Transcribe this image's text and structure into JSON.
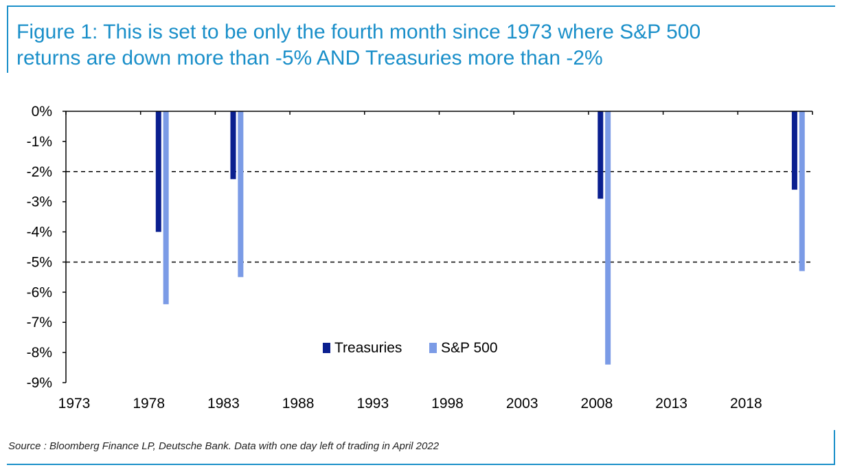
{
  "theme": {
    "accent": "#1a8fc9",
    "treasuries_color": "#0a1f8f",
    "sp500_color": "#7b9be6"
  },
  "figure": {
    "title_line1": "Figure 1: This is set to be only the fourth month since 1973 where S&P 500",
    "title_line2": "returns are down more than -5% AND Treasuries more than -2%",
    "source": "Source : Bloomberg Finance LP, Deutsche Bank. Data with one day left of trading in April 2022"
  },
  "chart_data": {
    "type": "bar",
    "x_ticks": [
      "1973",
      "1978",
      "1983",
      "1988",
      "1993",
      "1998",
      "2003",
      "2008",
      "2013",
      "2018"
    ],
    "y_ticks": [
      "0%",
      "-1%",
      "-2%",
      "-3%",
      "-4%",
      "-5%",
      "-6%",
      "-7%",
      "-8%",
      "-9%"
    ],
    "xlim": [
      1973,
      2023
    ],
    "ylim": [
      -9,
      0
    ],
    "reference_lines": [
      -2,
      -5
    ],
    "legend_position": "lower-center",
    "series": [
      {
        "name": "Treasuries",
        "x": [
          1979.2,
          1984.2,
          2008.8,
          2021.8
        ],
        "values": [
          -4.0,
          -2.25,
          -2.9,
          -2.6
        ]
      },
      {
        "name": "S&P 500",
        "x": [
          1979.7,
          1984.7,
          2009.3,
          2022.3
        ],
        "values": [
          -6.4,
          -5.5,
          -8.4,
          -5.3
        ]
      }
    ]
  }
}
